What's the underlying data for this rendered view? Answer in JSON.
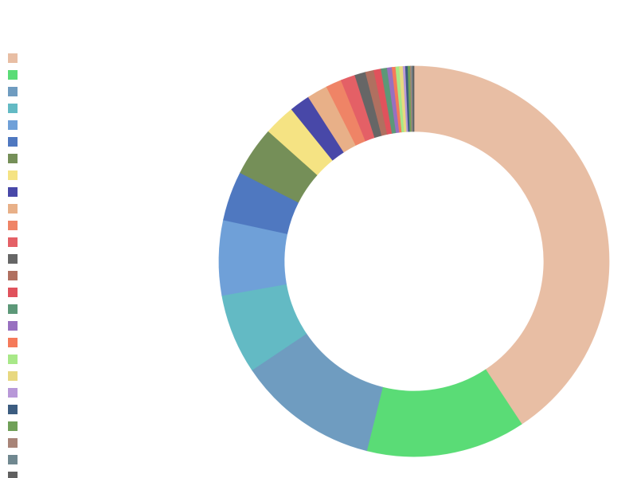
{
  "chart_data": {
    "type": "pie",
    "donut": true,
    "categories": [
      null,
      null,
      null,
      null,
      null,
      null,
      null,
      null,
      null,
      null,
      null,
      null,
      null,
      null,
      null,
      null,
      null,
      null,
      null,
      null,
      null,
      null,
      null,
      null,
      null,
      null
    ],
    "values": [
      40.7,
      13.2,
      11.7,
      6.6,
      6.2,
      4.1,
      4.1,
      2.6,
      1.7,
      1.7,
      1.3,
      1.2,
      0.9,
      0.7,
      0.6,
      0.5,
      0.4,
      0.3,
      0.3,
      0.3,
      0.2,
      0.2,
      0.2,
      0.1,
      0.1,
      0.1
    ],
    "colors": [
      "#e8bea4",
      "#5adc76",
      "#6f9cc0",
      "#63bac4",
      "#6fa0d8",
      "#4f78c0",
      "#758f58",
      "#f5e383",
      "#4848a8",
      "#e8b088",
      "#ef8466",
      "#e46066",
      "#666666",
      "#b07060",
      "#e0525c",
      "#5c9878",
      "#9870c0",
      "#f57a5a",
      "#a8e888",
      "#e8d880",
      "#b898d8",
      "#3c5c80",
      "#70a058",
      "#a88478",
      "#708890",
      "#606060"
    ],
    "legend": "left"
  }
}
